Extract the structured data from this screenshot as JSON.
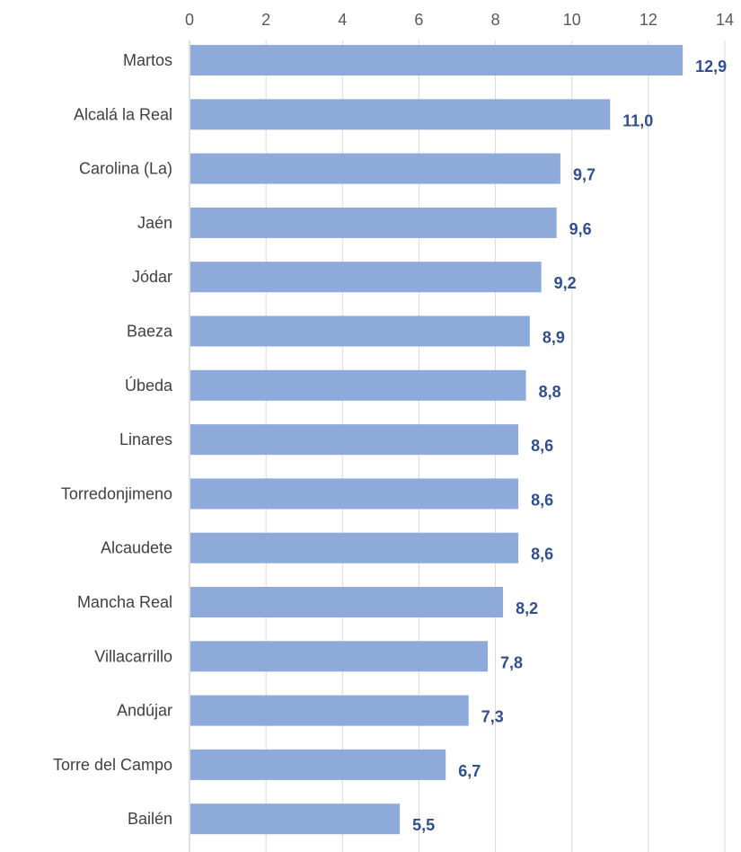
{
  "chart_data": {
    "type": "bar",
    "orientation": "horizontal",
    "categories": [
      "Martos",
      "Alcalá la Real",
      "Carolina (La)",
      "Jaén",
      "Jódar",
      "Baeza",
      "Úbeda",
      "Linares",
      "Torredonjimeno",
      "Alcaudete",
      "Mancha Real",
      "Villacarrillo",
      "Andújar",
      "Torre del Campo",
      "Bailén"
    ],
    "values": [
      12.9,
      11.0,
      9.7,
      9.6,
      9.2,
      8.9,
      8.8,
      8.6,
      8.6,
      8.6,
      8.2,
      7.8,
      7.3,
      6.7,
      5.5
    ],
    "value_labels": [
      "12,9",
      "11,0",
      "9,7",
      "9,6",
      "9,2",
      "8,9",
      "8,8",
      "8,6",
      "8,6",
      "8,6",
      "8,2",
      "7,8",
      "7,3",
      "6,7",
      "5,5"
    ],
    "x_ticks": [
      "0",
      "2",
      "4",
      "6",
      "8",
      "10",
      "12",
      "14"
    ],
    "xlim": [
      0,
      14
    ],
    "x_axis_position": "top",
    "grid": true,
    "colors": {
      "bar": "#8eaadb",
      "gridline": "#d9d9d9",
      "data_label": "#2f4f8f"
    }
  }
}
